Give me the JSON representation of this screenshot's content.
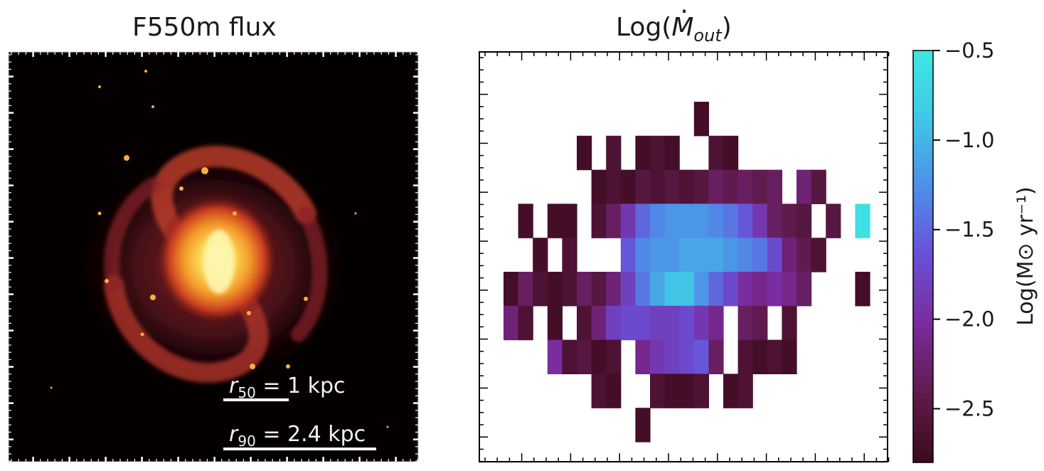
{
  "left_panel": {
    "title": "F550m flux",
    "r50": {
      "symbol": "r",
      "subscript": "50",
      "text": " = 1 kpc"
    },
    "r90": {
      "symbol": "r",
      "subscript": "90",
      "text": " = 2.4 kpc"
    }
  },
  "right_panel": {
    "title_prefix": "Log(",
    "title_symbol": "M",
    "title_subscript": "out",
    "title_suffix": ")"
  },
  "colorbar": {
    "label": "Log(M⊙ yr⁻¹)",
    "range": [
      -2.8,
      -0.5
    ],
    "ticks": [
      -0.5,
      -1.0,
      -1.5,
      -2.0,
      -2.5
    ],
    "tick_labels": [
      "−0.5",
      "−1.0",
      "−1.5",
      "−2.0",
      "−2.5"
    ],
    "colors": [
      "#3b0a1c",
      "#5e1a4a",
      "#7a2a9a",
      "#6a4fd6",
      "#4f8ce8",
      "#40c8e6",
      "#3de8e4"
    ]
  },
  "chart_data": {
    "type": "heatmap",
    "title": "Log(Ṁout)",
    "colorbar_label": "Log(M⊙ yr⁻¹)",
    "value_range": [
      -2.8,
      -0.5
    ],
    "rows": [
      {
        "row": 0,
        "cells": [
          [
            13,
            -2.7
          ]
        ]
      },
      {
        "row": 1,
        "cells": [
          [
            5,
            -2.7
          ],
          [
            7,
            -2.6
          ],
          [
            9,
            -2.7
          ],
          [
            10,
            -2.6
          ],
          [
            11,
            -2.7
          ],
          [
            14,
            -2.6
          ],
          [
            15,
            -2.7
          ]
        ]
      },
      {
        "row": 2,
        "cells": [
          [
            6,
            -2.7
          ],
          [
            7,
            -2.6
          ],
          [
            8,
            -2.7
          ],
          [
            9,
            -2.5
          ],
          [
            10,
            -2.6
          ],
          [
            11,
            -2.5
          ],
          [
            12,
            -2.6
          ],
          [
            13,
            -2.5
          ],
          [
            14,
            -2.3
          ],
          [
            15,
            -2.4
          ],
          [
            16,
            -2.3
          ],
          [
            17,
            -2.4
          ],
          [
            18,
            -2.3
          ],
          [
            20,
            -2.2
          ],
          [
            21,
            -2.5
          ]
        ]
      },
      {
        "row": 3,
        "cells": [
          [
            1,
            -2.7
          ],
          [
            3,
            -2.7
          ],
          [
            4,
            -2.7
          ],
          [
            6,
            -2.6
          ],
          [
            7,
            -2.3
          ],
          [
            8,
            -1.9
          ],
          [
            9,
            -1.5
          ],
          [
            10,
            -1.3
          ],
          [
            11,
            -1.2
          ],
          [
            12,
            -1.2
          ],
          [
            13,
            -1.2
          ],
          [
            14,
            -1.3
          ],
          [
            15,
            -1.4
          ],
          [
            16,
            -1.6
          ],
          [
            17,
            -1.9
          ],
          [
            18,
            -2.3
          ],
          [
            19,
            -2.4
          ],
          [
            20,
            -2.5
          ],
          [
            22,
            -2.5
          ],
          [
            24,
            -0.6
          ]
        ]
      },
      {
        "row": 4,
        "cells": [
          [
            2,
            -2.7
          ],
          [
            4,
            -2.6
          ],
          [
            8,
            -1.6
          ],
          [
            9,
            -1.3
          ],
          [
            10,
            -1.2
          ],
          [
            11,
            -1.2
          ],
          [
            12,
            -1.1
          ],
          [
            13,
            -1.1
          ],
          [
            14,
            -1.1
          ],
          [
            15,
            -1.2
          ],
          [
            16,
            -1.3
          ],
          [
            17,
            -1.4
          ],
          [
            18,
            -1.7
          ],
          [
            19,
            -2.2
          ],
          [
            20,
            -2.4
          ],
          [
            21,
            -2.6
          ]
        ]
      },
      {
        "row": 5,
        "cells": [
          [
            0,
            -2.7
          ],
          [
            1,
            -2.3
          ],
          [
            2,
            -2.6
          ],
          [
            3,
            -2.7
          ],
          [
            4,
            -2.6
          ],
          [
            5,
            -2.3
          ],
          [
            6,
            -2.5
          ],
          [
            7,
            -2.2
          ],
          [
            8,
            -1.8
          ],
          [
            9,
            -1.4
          ],
          [
            10,
            -1.1
          ],
          [
            11,
            -0.9
          ],
          [
            12,
            -0.9
          ],
          [
            13,
            -1.2
          ],
          [
            14,
            -1.5
          ],
          [
            15,
            -1.7
          ],
          [
            16,
            -2.0
          ],
          [
            17,
            -2.1
          ],
          [
            18,
            -2.0
          ],
          [
            19,
            -2.1
          ],
          [
            20,
            -2.3
          ],
          [
            24,
            -2.7
          ]
        ]
      },
      {
        "row": 6,
        "cells": [
          [
            0,
            -2.2
          ],
          [
            1,
            -2.6
          ],
          [
            3,
            -2.7
          ],
          [
            5,
            -2.6
          ],
          [
            6,
            -2.2
          ],
          [
            7,
            -1.8
          ],
          [
            8,
            -1.7
          ],
          [
            9,
            -1.7
          ],
          [
            10,
            -1.8
          ],
          [
            11,
            -1.8
          ],
          [
            12,
            -1.7
          ],
          [
            13,
            -1.9
          ],
          [
            14,
            -2.1
          ],
          [
            16,
            -2.3
          ],
          [
            17,
            -2.4
          ],
          [
            19,
            -2.6
          ]
        ]
      },
      {
        "row": 7,
        "cells": [
          [
            3,
            -2.0
          ],
          [
            4,
            -2.6
          ],
          [
            5,
            -2.5
          ],
          [
            6,
            -2.7
          ],
          [
            7,
            -2.6
          ],
          [
            9,
            -2.1
          ],
          [
            10,
            -1.9
          ],
          [
            11,
            -1.8
          ],
          [
            12,
            -1.7
          ],
          [
            13,
            -1.6
          ],
          [
            14,
            -2.3
          ],
          [
            16,
            -2.6
          ],
          [
            17,
            -2.7
          ],
          [
            18,
            -2.6
          ],
          [
            19,
            -2.7
          ]
        ]
      },
      {
        "row": 8,
        "cells": [
          [
            6,
            -2.6
          ],
          [
            7,
            -2.7
          ],
          [
            10,
            -2.6
          ],
          [
            11,
            -2.7
          ],
          [
            12,
            -2.7
          ],
          [
            13,
            -2.6
          ],
          [
            15,
            -2.7
          ],
          [
            16,
            -2.6
          ]
        ]
      },
      {
        "row": 9,
        "cells": [
          [
            9,
            -2.7
          ]
        ]
      }
    ]
  }
}
